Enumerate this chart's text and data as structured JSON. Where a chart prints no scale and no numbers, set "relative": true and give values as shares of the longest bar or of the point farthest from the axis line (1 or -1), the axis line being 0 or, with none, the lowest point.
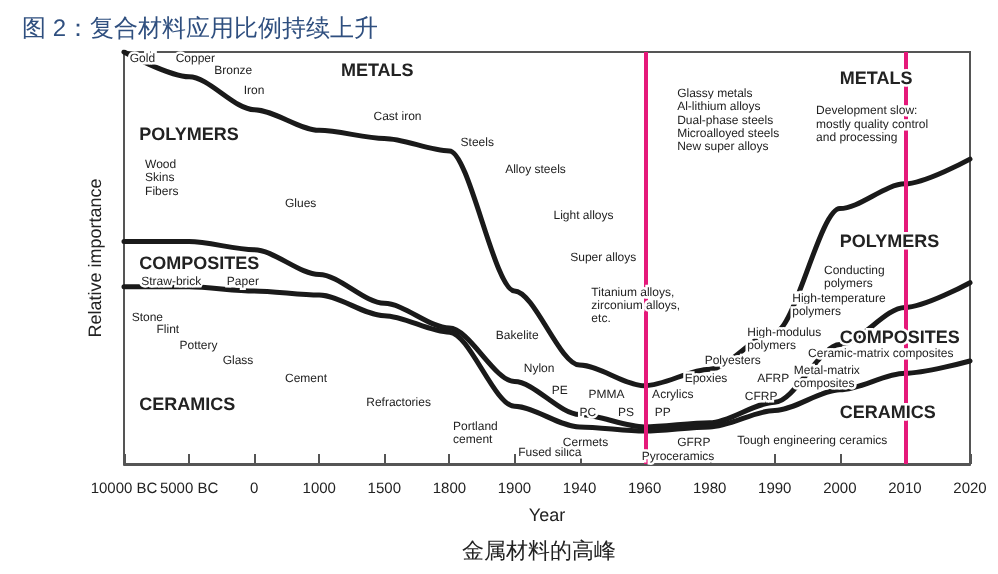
{
  "chart_data": {
    "type": "line",
    "title": "图 2：复合材料应用比例持续上升",
    "xlabel": "Year",
    "ylabel": "Relative importance",
    "relative": true,
    "marker": "none",
    "categories": [
      "10000 BC",
      "5000 BC",
      "0",
      "1000",
      "1500",
      "1800",
      "1900",
      "1940",
      "1960",
      "1980",
      "1990",
      "2000",
      "2010",
      "2020"
    ],
    "series": [
      {
        "color": "#1a1a1a",
        "values": [
          1,
          0.94,
          0.86,
          0.81,
          0.79,
          0.76,
          0.42,
          0.24,
          0.19,
          0.23,
          0.32,
          0.62,
          0.68,
          0.74
        ]
      },
      {
        "color": "#1a1a1a",
        "values": [
          0.54,
          0.54,
          0.52,
          0.46,
          0.39,
          0.33,
          0.2,
          0.12,
          0.09,
          0.1,
          0.15,
          0.29,
          0.38,
          0.44
        ]
      },
      {
        "color": "#1a1a1a",
        "values": [
          0.43,
          0.43,
          0.42,
          0.41,
          0.36,
          0.32,
          0.14,
          0.09,
          0.08,
          0.09,
          0.13,
          0.18,
          0.22,
          0.25
        ]
      }
    ],
    "ref_lines": [
      {
        "axis": "x",
        "value": "1960",
        "color": "#e5197a"
      },
      {
        "axis": "x",
        "value": "2010",
        "color": "#e5197a"
      }
    ],
    "annotations": [
      "Gold",
      "Copper",
      "Bronze",
      "Iron",
      "METALS",
      "Cast iron",
      "Steels",
      "POLYMERS",
      "Wood\nSkins\nFibers",
      "Glues",
      "COMPOSITES",
      "Straw-brick",
      "Paper",
      "Stone",
      "Flint",
      "Pottery",
      "Glass",
      "Cement",
      "CERAMICS",
      "Refractories",
      "Portland\ncement",
      "Alloy steels",
      "Light alloys",
      "Super alloys",
      "Titanium alloys,\nzirconium alloys,\netc.",
      "Bakelite",
      "Nylon",
      "PE",
      "PC",
      "PS",
      "PP",
      "Polyesters",
      "Epoxies",
      "PMMA",
      "Acrylics",
      "AFRP",
      "CFRP",
      "GFRP",
      "Glassy metals\nAl-lithium alloys\nDual-phase steels\nMicroalloyed steels\nNew super alloys",
      "Development slow:\nmostly quality control\nand processing",
      "METALS",
      "POLYMERS",
      "Conducting\npolymers",
      "High-temperature\npolymers",
      "High-modulus\npolymers",
      "COMPOSITES",
      "Ceramic-matrix composites",
      "Metal-matrix\ncomposites",
      "CERAMICS",
      "Fused silica",
      "Cermets",
      "Pyroceramics",
      "Tough engineering ceramics",
      "金属材料的高峰"
    ]
  }
}
